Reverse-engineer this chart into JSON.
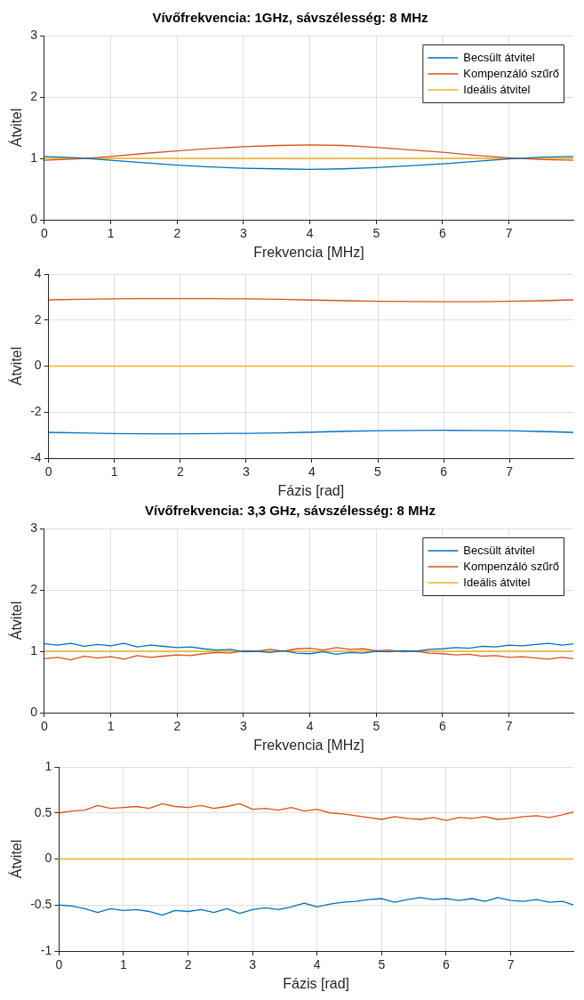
{
  "chart_data": [
    {
      "type": "line",
      "title": "Vívőfrekvencia: 1GHz, sávszélesség: 8 MHz",
      "xlabel": "Frekvencia [MHz]",
      "ylabel": "Átvitel",
      "xlim": [
        0,
        7.97
      ],
      "xticks": [
        0,
        1,
        2,
        3,
        4,
        5,
        6,
        7
      ],
      "ylim": [
        0,
        3
      ],
      "yticks": [
        0,
        1,
        2,
        3
      ],
      "grid": true,
      "legend": "top right",
      "x": [
        0,
        0.5,
        1,
        1.5,
        2,
        2.5,
        3,
        3.5,
        4,
        4.5,
        5,
        5.5,
        6,
        6.5,
        7,
        7.5,
        7.97
      ],
      "series": [
        {
          "name": "Becsült átvitel",
          "color": "#0072bd",
          "values": [
            1.03,
            1.01,
            0.97,
            0.93,
            0.89,
            0.86,
            0.84,
            0.83,
            0.82,
            0.83,
            0.85,
            0.88,
            0.91,
            0.95,
            0.99,
            1.02,
            1.03
          ]
        },
        {
          "name": "Kompenzáló szűrő",
          "color": "#d95319",
          "values": [
            0.97,
            0.99,
            1.03,
            1.08,
            1.12,
            1.16,
            1.19,
            1.21,
            1.22,
            1.21,
            1.18,
            1.14,
            1.1,
            1.05,
            1.01,
            0.98,
            0.97
          ]
        },
        {
          "name": "Ideális átvitel",
          "color": "#edb120",
          "values": [
            1,
            1,
            1,
            1,
            1,
            1,
            1,
            1,
            1,
            1,
            1,
            1,
            1,
            1,
            1,
            1,
            1
          ]
        }
      ]
    },
    {
      "type": "line",
      "xlabel": "Fázis [rad]",
      "ylabel": "Átvitel",
      "xlim": [
        0,
        7.97
      ],
      "xticks": [
        0,
        1,
        2,
        3,
        4,
        5,
        6,
        7
      ],
      "ylim": [
        -4,
        4
      ],
      "yticks": [
        -4,
        -2,
        0,
        2,
        4
      ],
      "grid": true,
      "x": [
        0,
        0.5,
        1,
        1.5,
        2,
        2.5,
        3,
        3.5,
        4,
        4.5,
        5,
        5.5,
        6,
        6.5,
        7,
        7.5,
        7.97
      ],
      "series": [
        {
          "color": "#0072bd",
          "values": [
            -2.88,
            -2.9,
            -2.93,
            -2.94,
            -2.94,
            -2.93,
            -2.92,
            -2.9,
            -2.87,
            -2.83,
            -2.81,
            -2.8,
            -2.79,
            -2.8,
            -2.81,
            -2.84,
            -2.88
          ]
        },
        {
          "color": "#d95319",
          "values": [
            2.88,
            2.9,
            2.92,
            2.93,
            2.93,
            2.93,
            2.92,
            2.9,
            2.87,
            2.84,
            2.82,
            2.81,
            2.8,
            2.8,
            2.82,
            2.84,
            2.88
          ]
        },
        {
          "color": "#edb120",
          "values": [
            0,
            0,
            0,
            0,
            0,
            0,
            0,
            0,
            0,
            0,
            0,
            0,
            0,
            0,
            0,
            0,
            0
          ]
        }
      ]
    },
    {
      "type": "line",
      "title": "Vívőfrekvencia: 3,3 GHz, sávszélesség: 8 MHz",
      "xlabel": "Frekvencia [MHz]",
      "ylabel": "Átvitel",
      "xlim": [
        0,
        7.97
      ],
      "xticks": [
        0,
        1,
        2,
        3,
        4,
        5,
        6,
        7
      ],
      "ylim": [
        0,
        3
      ],
      "yticks": [
        0,
        1,
        2,
        3
      ],
      "grid": true,
      "legend": "top right",
      "x": [
        0,
        0.2,
        0.4,
        0.6,
        0.8,
        1,
        1.2,
        1.4,
        1.6,
        1.8,
        2,
        2.2,
        2.4,
        2.6,
        2.8,
        3,
        3.2,
        3.4,
        3.6,
        3.8,
        4,
        4.2,
        4.4,
        4.6,
        4.8,
        5,
        5.2,
        5.4,
        5.6,
        5.8,
        6,
        6.2,
        6.4,
        6.6,
        6.8,
        7,
        7.2,
        7.4,
        7.6,
        7.8,
        7.97
      ],
      "series": [
        {
          "name": "Becsült átvitel",
          "color": "#0072bd",
          "values": [
            1.12,
            1.1,
            1.13,
            1.08,
            1.11,
            1.09,
            1.13,
            1.07,
            1.1,
            1.08,
            1.06,
            1.07,
            1.04,
            1.02,
            1.03,
            0.99,
            1.0,
            0.98,
            1.01,
            0.97,
            0.96,
            0.99,
            0.95,
            0.98,
            0.97,
            1.0,
            0.99,
            1.01,
            1.0,
            1.03,
            1.04,
            1.06,
            1.05,
            1.08,
            1.07,
            1.1,
            1.09,
            1.11,
            1.13,
            1.1,
            1.12
          ]
        },
        {
          "name": "Kompenzáló szűrő",
          "color": "#d95319",
          "values": [
            0.88,
            0.9,
            0.86,
            0.92,
            0.89,
            0.91,
            0.87,
            0.93,
            0.9,
            0.92,
            0.94,
            0.93,
            0.96,
            0.98,
            0.97,
            1.01,
            1.0,
            1.03,
            1.0,
            1.04,
            1.05,
            1.02,
            1.06,
            1.03,
            1.04,
            1.01,
            1.02,
            0.99,
            1.0,
            0.97,
            0.96,
            0.94,
            0.95,
            0.92,
            0.93,
            0.9,
            0.91,
            0.89,
            0.87,
            0.9,
            0.88
          ]
        },
        {
          "name": "Ideális átvitel",
          "color": "#edb120",
          "values": [
            1,
            1,
            1,
            1,
            1,
            1,
            1,
            1,
            1,
            1,
            1,
            1,
            1,
            1,
            1,
            1,
            1,
            1,
            1,
            1,
            1,
            1,
            1,
            1,
            1,
            1,
            1,
            1,
            1,
            1,
            1,
            1,
            1,
            1,
            1,
            1,
            1,
            1,
            1,
            1,
            1
          ]
        }
      ]
    },
    {
      "type": "line",
      "xlabel": "Fázis [rad]",
      "ylabel": "Átvitel",
      "xlim": [
        0,
        7.97
      ],
      "xticks": [
        0,
        1,
        2,
        3,
        4,
        5,
        6,
        7
      ],
      "ylim": [
        -1,
        1
      ],
      "yticks": [
        -1,
        -0.5,
        0,
        0.5,
        1
      ],
      "grid": true,
      "x": [
        0,
        0.2,
        0.4,
        0.6,
        0.8,
        1,
        1.2,
        1.4,
        1.6,
        1.8,
        2,
        2.2,
        2.4,
        2.6,
        2.8,
        3,
        3.2,
        3.4,
        3.6,
        3.8,
        4,
        4.2,
        4.4,
        4.6,
        4.8,
        5,
        5.2,
        5.4,
        5.6,
        5.8,
        6,
        6.2,
        6.4,
        6.6,
        6.8,
        7,
        7.2,
        7.4,
        7.6,
        7.8,
        7.97
      ],
      "series": [
        {
          "color": "#0072bd",
          "values": [
            -0.5,
            -0.51,
            -0.54,
            -0.58,
            -0.54,
            -0.56,
            -0.55,
            -0.57,
            -0.61,
            -0.56,
            -0.57,
            -0.55,
            -0.58,
            -0.54,
            -0.59,
            -0.55,
            -0.53,
            -0.55,
            -0.52,
            -0.48,
            -0.52,
            -0.49,
            -0.47,
            -0.46,
            -0.44,
            -0.43,
            -0.47,
            -0.44,
            -0.42,
            -0.44,
            -0.43,
            -0.45,
            -0.43,
            -0.46,
            -0.42,
            -0.45,
            -0.46,
            -0.44,
            -0.47,
            -0.46,
            -0.5
          ]
        },
        {
          "color": "#d95319",
          "values": [
            0.5,
            0.52,
            0.53,
            0.58,
            0.55,
            0.56,
            0.57,
            0.55,
            0.6,
            0.57,
            0.56,
            0.58,
            0.55,
            0.57,
            0.6,
            0.54,
            0.55,
            0.53,
            0.56,
            0.52,
            0.54,
            0.5,
            0.49,
            0.47,
            0.45,
            0.43,
            0.46,
            0.44,
            0.43,
            0.45,
            0.42,
            0.45,
            0.44,
            0.46,
            0.43,
            0.44,
            0.46,
            0.47,
            0.45,
            0.48,
            0.51
          ]
        },
        {
          "color": "#edb120",
          "values": [
            0,
            0,
            0,
            0,
            0,
            0,
            0,
            0,
            0,
            0,
            0,
            0,
            0,
            0,
            0,
            0,
            0,
            0,
            0,
            0,
            0,
            0,
            0,
            0,
            0,
            0,
            0,
            0,
            0,
            0,
            0,
            0,
            0,
            0,
            0,
            0,
            0,
            0,
            0,
            0,
            0
          ]
        }
      ]
    }
  ]
}
